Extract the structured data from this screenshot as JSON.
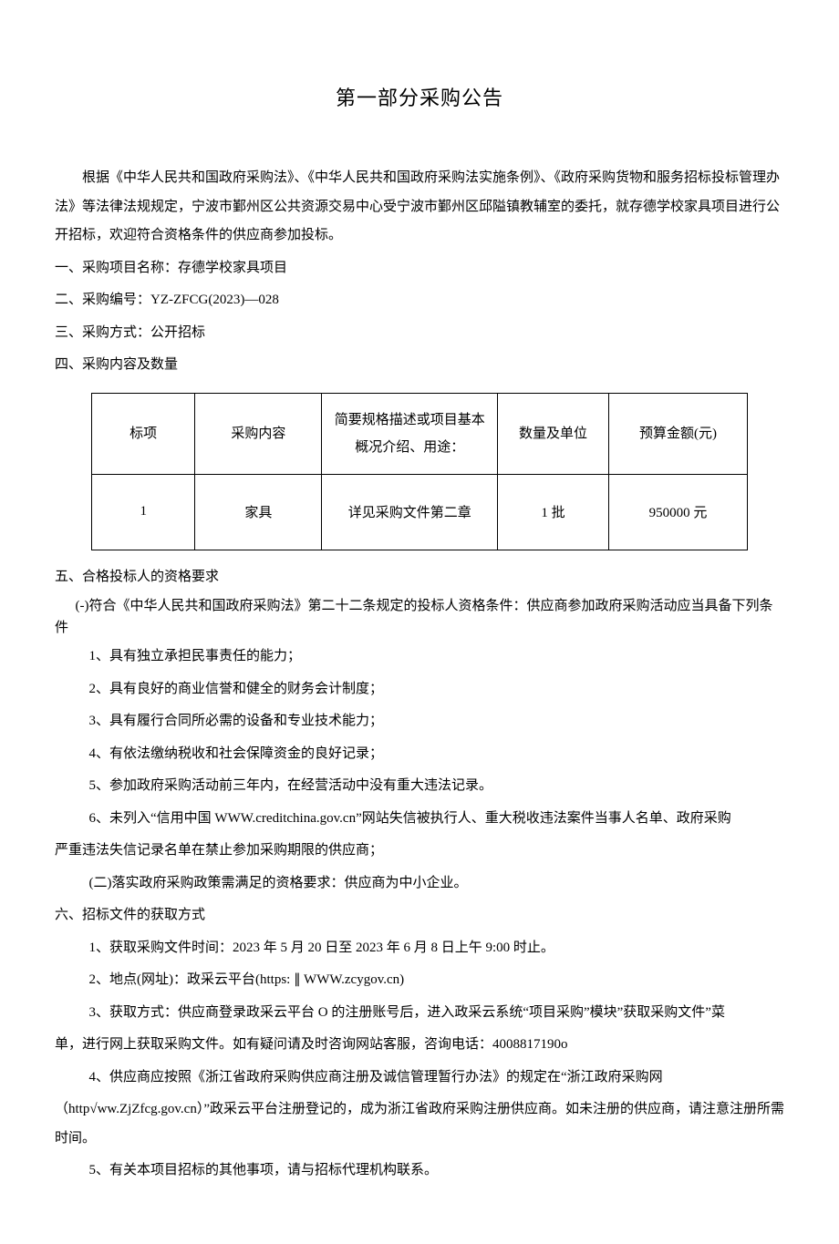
{
  "title": "第一部分采购公告",
  "intro": "根据《中华人民共和国政府采购法》、《中华人民共和国政府采购法实施条例》、《政府采购货物和服务招标投标管理办法》等法律法规规定，宁波市鄞州区公共资源交易中心受宁波市鄞州区邱隘镇教辅室的委托，就存德学校家具项目进行公开招标，欢迎符合资格条件的供应商参加投标。",
  "s1": "一、采购项目名称：存德学校家具项目",
  "s2": "二、采购编号：YZ-ZFCG(2023)—028",
  "s3": "三、采购方式：公开招标",
  "s4": "四、采购内容及数量",
  "table": {
    "headers": [
      "标项",
      "采购内容",
      "简要规格描述或项目基本概况介绍、用途：",
      "数量及单位",
      "预算金额(元)"
    ],
    "rows": [
      [
        "1",
        "家具",
        "详见采购文件第二章",
        "1 批",
        "950000 元"
      ]
    ]
  },
  "s5": "五、合格投标人的资格要求",
  "s5_sub1": "(-)符合《中华人民共和国政府采购法》第二十二条规定的投标人资格条件：供应商参加政府采购活动应当具备下列条件",
  "s5_items": [
    "1、具有独立承担民事责任的能力；",
    "2、具有良好的商业信誉和健全的财务会计制度；",
    "3、具有履行合同所必需的设备和专业技术能力；",
    "4、有依法缴纳税收和社会保障资金的良好记录；",
    "5、参加政府采购活动前三年内，在经营活动中没有重大违法记录。",
    "6、未列入“信用中国 WWW.creditchina.gov.cn”网站失信被执行人、重大税收违法案件当事人名单、政府采购"
  ],
  "s5_item6_cont": "严重违法失信记录名单在禁止参加采购期限的供应商；",
  "s5_sub2": "(二)落实政府采购政策需满足的资格要求：供应商为中小企业。",
  "s6": "六、招标文件的获取方式",
  "s6_items": [
    "1、获取采购文件时间：2023 年 5 月 20 日至 2023 年 6 月 8 日上午 9:00 时止。",
    "2、地点(网址)：政采云平台(https: ∥ WWW.zcygov.cn)",
    "3、获取方式：供应商登录政采云平台 O 的注册账号后，进入政采云系统“项目采购”模块”获取采购文件”菜"
  ],
  "s6_item3_cont": "单，进行网上获取采购文件。如有疑问请及时咨询网站客服，咨询电话：4008817190o",
  "s6_item4": "4、供应商应按照《浙江省政府采购供应商注册及诚信管理暂行办法》的规定在“浙江政府采购网",
  "s6_item4_cont": "（http√ww.ZjZfcg.gov.cn）”政采云平台注册登记的，成为浙江省政府采购注册供应商。如未注册的供应商，请注意注册所需时间。",
  "s6_item5": "5、有关本项目招标的其他事项，请与招标代理机构联系。"
}
